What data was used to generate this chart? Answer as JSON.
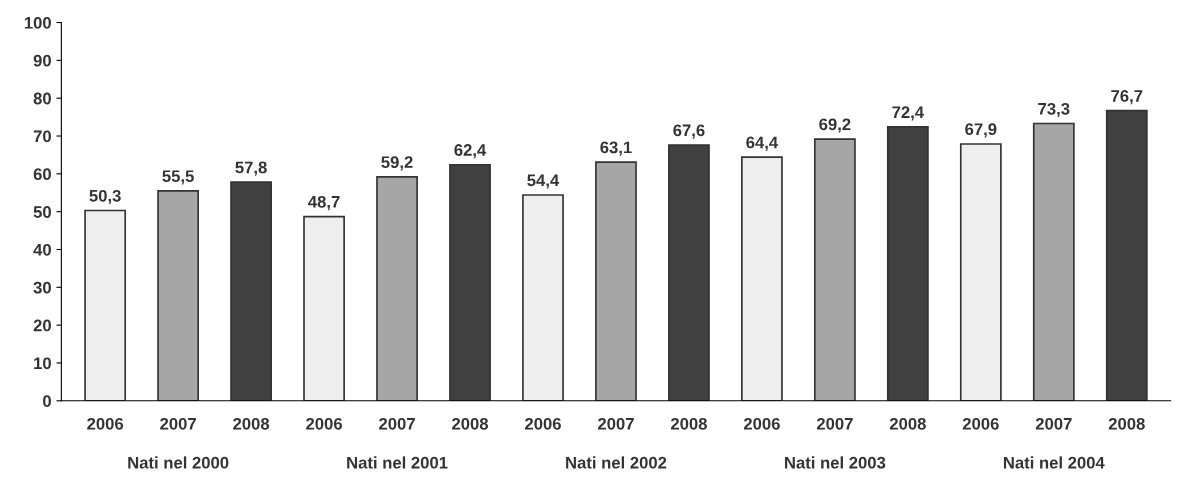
{
  "chart_data": {
    "type": "bar",
    "categories": [
      "2006",
      "2007",
      "2008",
      "2006",
      "2007",
      "2008",
      "2006",
      "2007",
      "2008",
      "2006",
      "2007",
      "2008",
      "2006",
      "2007",
      "2008"
    ],
    "values": [
      50.3,
      55.5,
      57.8,
      48.7,
      59.2,
      62.4,
      54.4,
      63.1,
      67.6,
      64.4,
      69.2,
      72.4,
      67.9,
      73.3,
      76.7
    ],
    "colors": [
      "#eeeeee",
      "#a6a6a6",
      "#404040",
      "#eeeeee",
      "#a6a6a6",
      "#404040",
      "#eeeeee",
      "#a6a6a6",
      "#404040",
      "#eeeeee",
      "#a6a6a6",
      "#404040",
      "#eeeeee",
      "#a6a6a6",
      "#404040"
    ],
    "value_labels": [
      "50,3",
      "55,5",
      "57,8",
      "48,7",
      "59,2",
      "62,4",
      "54,4",
      "63,1",
      "67,6",
      "64,4",
      "69,2",
      "72,4",
      "67,9",
      "73,3",
      "76,7"
    ],
    "annotations": [
      "Nati nel 2000",
      "Nati nel 2001",
      "Nati nel 2002",
      "Nati nel 2003",
      "Nati nel 2004"
    ],
    "ylim": [
      0,
      100
    ],
    "yticks": [
      0,
      10,
      20,
      30,
      40,
      50,
      60,
      70,
      80,
      90,
      100
    ],
    "grid": false
  }
}
